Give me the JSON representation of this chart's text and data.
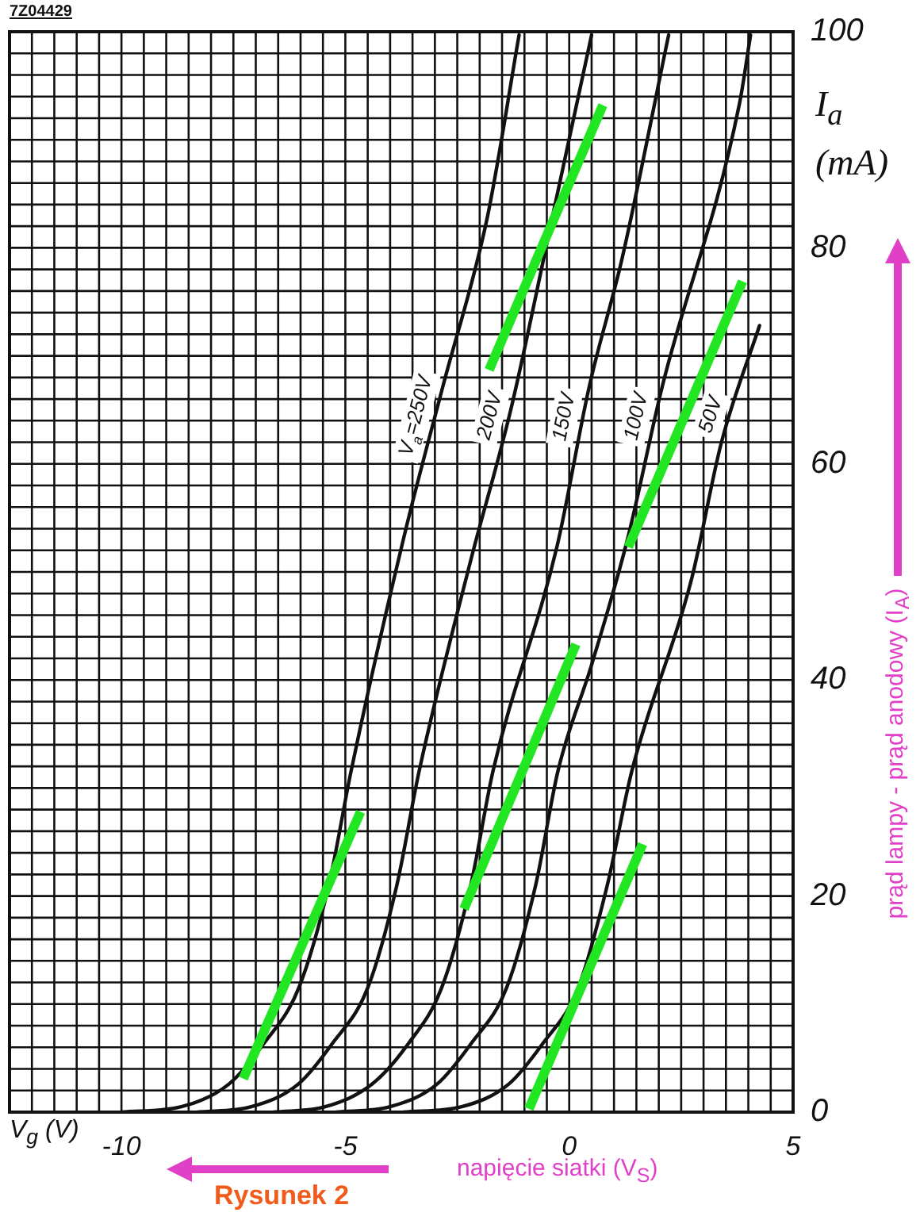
{
  "chart_data": {
    "type": "line",
    "xlabel": "V$_{g}$ (V)",
    "ylabel": "I$_{a}$ (mA)",
    "annotations": [
      "7Z04429",
      "napięcie siatki (V$_{S}$)",
      "prąd lampy - prąd anodowy (I$_{A}$)",
      "Rysunek 2"
    ],
    "xlim": [
      -12.5,
      5
    ],
    "ylim": [
      0,
      100
    ],
    "xticks": [
      {
        "value": -12.5,
        "label": null
      },
      {
        "value": -12,
        "label": null
      },
      {
        "value": -11.5,
        "label": null
      },
      {
        "value": -11,
        "label": null
      },
      {
        "value": -10.5,
        "label": null
      },
      -10,
      {
        "value": -9.5,
        "label": null
      },
      {
        "value": -9,
        "label": null
      },
      {
        "value": -8.5,
        "label": null
      },
      {
        "value": -8,
        "label": null
      },
      {
        "value": -7.5,
        "label": null
      },
      {
        "value": -7,
        "label": null
      },
      {
        "value": -6.5,
        "label": null
      },
      {
        "value": -6,
        "label": null
      },
      {
        "value": -5.5,
        "label": null
      },
      -5,
      {
        "value": -4.5,
        "label": null
      },
      {
        "value": -4,
        "label": null
      },
      {
        "value": -3.5,
        "label": null
      },
      {
        "value": -3,
        "label": null
      },
      {
        "value": -2.5,
        "label": null
      },
      {
        "value": -2,
        "label": null
      },
      {
        "value": -1.5,
        "label": null
      },
      {
        "value": -1,
        "label": null
      },
      {
        "value": -0.5,
        "label": null
      },
      0,
      {
        "value": 0.5,
        "label": null
      },
      {
        "value": 1,
        "label": null
      },
      {
        "value": 1.5,
        "label": null
      },
      {
        "value": 2,
        "label": null
      },
      {
        "value": 2.5,
        "label": null
      },
      {
        "value": 3,
        "label": null
      },
      {
        "value": 3.5,
        "label": null
      },
      {
        "value": 4,
        "label": null
      },
      {
        "value": 4.5,
        "label": null
      },
      5
    ],
    "yticks": [
      0,
      {
        "value": 2,
        "label": null
      },
      {
        "value": 4,
        "label": null
      },
      {
        "value": 6,
        "label": null
      },
      {
        "value": 8,
        "label": null
      },
      {
        "value": 10,
        "label": null
      },
      {
        "value": 12,
        "label": null
      },
      {
        "value": 14,
        "label": null
      },
      {
        "value": 16,
        "label": null
      },
      {
        "value": 18,
        "label": null
      },
      20,
      {
        "value": 22,
        "label": null
      },
      {
        "value": 24,
        "label": null
      },
      {
        "value": 26,
        "label": null
      },
      {
        "value": 28,
        "label": null
      },
      {
        "value": 30,
        "label": null
      },
      {
        "value": 32,
        "label": null
      },
      {
        "value": 34,
        "label": null
      },
      {
        "value": 36,
        "label": null
      },
      {
        "value": 38,
        "label": null
      },
      40,
      {
        "value": 42,
        "label": null
      },
      {
        "value": 44,
        "label": null
      },
      {
        "value": 46,
        "label": null
      },
      {
        "value": 48,
        "label": null
      },
      {
        "value": 50,
        "label": null
      },
      {
        "value": 52,
        "label": null
      },
      {
        "value": 54,
        "label": null
      },
      {
        "value": 56,
        "label": null
      },
      {
        "value": 58,
        "label": null
      },
      60,
      {
        "value": 62,
        "label": null
      },
      {
        "value": 64,
        "label": null
      },
      {
        "value": 66,
        "label": null
      },
      {
        "value": 68,
        "label": null
      },
      {
        "value": 70,
        "label": null
      },
      {
        "value": 72,
        "label": null
      },
      {
        "value": 74,
        "label": null
      },
      {
        "value": 76,
        "label": null
      },
      {
        "value": 78,
        "label": null
      },
      80,
      {
        "value": 82,
        "label": null
      },
      {
        "value": 84,
        "label": null
      },
      {
        "value": 86,
        "label": null
      },
      {
        "value": 88,
        "label": null
      },
      {
        "value": 90,
        "label": null
      },
      {
        "value": 92,
        "label": null
      },
      {
        "value": 94,
        "label": null
      },
      {
        "value": 96,
        "label": null
      },
      {
        "value": 98,
        "label": null
      },
      100
    ],
    "grid": true,
    "marker": "none",
    "line_style": "solid",
    "series": [
      {
        "name": "V$_{a}$=250V",
        "color": "#111111",
        "x": [
          -10,
          -8.66,
          -7.6,
          -6.83,
          -6.04,
          -5.37,
          -4.87,
          -3.67,
          -2.82,
          -1.83,
          -1.12
        ],
        "values": [
          0,
          0.5,
          2.6,
          6.3,
          11.5,
          21,
          31.6,
          53.6,
          67.2,
          82.8,
          99.7
        ]
      },
      {
        "name": "200V",
        "color": "#111111",
        "x": [
          -8.3,
          -7.1,
          -6.05,
          -5.3,
          -4.5,
          -3.85,
          -3.35,
          -2.21,
          -1.3,
          -0.27,
          0.5
        ],
        "values": [
          0,
          0.5,
          2.6,
          6.3,
          11.5,
          21,
          31.6,
          50.9,
          65.1,
          84.9,
          99.7
        ]
      },
      {
        "name": "150V",
        "color": "#111111",
        "x": [
          -6.6,
          -5.45,
          -4.4,
          -3.6,
          -2.85,
          -2.2,
          -1.7,
          -0.27,
          0.45,
          1.18,
          2.22
        ],
        "values": [
          0,
          0.5,
          2.6,
          6.3,
          11.5,
          21,
          31.6,
          52.4,
          67.2,
          79,
          99.7
        ]
      },
      {
        "name": "100V",
        "color": "#111111",
        "x": [
          -5.2,
          -4,
          -2.95,
          -2.2,
          -1.4,
          -0.75,
          -0.25,
          0.5,
          1.3,
          2.08,
          3.8,
          4.05
        ],
        "values": [
          0,
          0.5,
          2.6,
          6.3,
          11.5,
          21,
          31.6,
          41.4,
          53,
          67.2,
          93.3,
          99.7
        ]
      },
      {
        "name": "50V",
        "color": "#111111",
        "x": [
          -3.7,
          -2.4,
          -1.35,
          -0.6,
          0.2,
          0.85,
          1.4,
          2.73,
          3.4,
          4.25
        ],
        "values": [
          0,
          0.5,
          2.6,
          6.3,
          11.5,
          21,
          31.6,
          49.3,
          62,
          72.8
        ]
      },
      {
        "color": "#22e622",
        "x": [
          -7.28,
          -4.66
        ],
        "values": [
          3.1,
          27.8
        ]
      },
      {
        "color": "#22e622",
        "x": [
          -2.35,
          0.15
        ],
        "values": [
          18.8,
          43.3
        ]
      },
      {
        "color": "#22e622",
        "x": [
          -0.9,
          1.64
        ],
        "values": [
          0.3,
          24.8
        ]
      },
      {
        "color": "#22e622",
        "x": [
          -1.79,
          0.75
        ],
        "values": [
          68.7,
          93.2
        ]
      },
      {
        "color": "#22e622",
        "x": [
          1.32,
          3.87
        ],
        "values": [
          52.3,
          76.9
        ]
      }
    ]
  }
}
